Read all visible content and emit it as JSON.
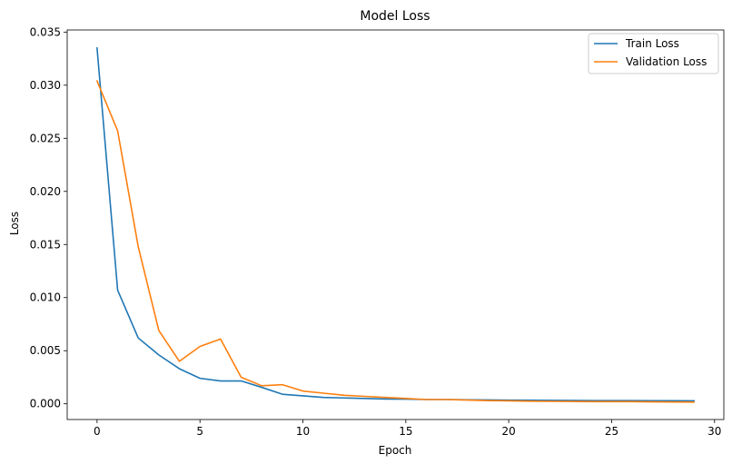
{
  "chart_data": {
    "type": "line",
    "title": "Model Loss",
    "xlabel": "Epoch",
    "ylabel": "Loss",
    "xlim": [
      -1.45,
      30.45
    ],
    "ylim": [
      -0.00148,
      0.0352
    ],
    "xticks": [
      0,
      5,
      10,
      15,
      20,
      25,
      30
    ],
    "yticks": [
      0.0,
      0.005,
      0.01,
      0.015,
      0.02,
      0.025,
      0.03,
      0.035
    ],
    "xtick_labels": [
      "0",
      "5",
      "10",
      "15",
      "20",
      "25",
      "30"
    ],
    "ytick_labels": [
      "0.000",
      "0.005",
      "0.010",
      "0.015",
      "0.020",
      "0.025",
      "0.030",
      "0.035"
    ],
    "grid": false,
    "legend_position": "top-right",
    "x": [
      0,
      1,
      2,
      3,
      4,
      5,
      6,
      7,
      8,
      9,
      10,
      11,
      12,
      13,
      14,
      15,
      16,
      17,
      18,
      19,
      20,
      21,
      22,
      23,
      24,
      25,
      26,
      27,
      28,
      29
    ],
    "series": [
      {
        "name": "Train Loss",
        "color": "#1f77b4",
        "values": [
          0.0335,
          0.0107,
          0.0062,
          0.0046,
          0.0033,
          0.0024,
          0.00215,
          0.00215,
          0.00155,
          0.0009,
          0.00075,
          0.0006,
          0.00055,
          0.0005,
          0.00045,
          0.00044,
          0.0004,
          0.0004,
          0.00038,
          0.00036,
          0.00034,
          0.00033,
          0.00032,
          0.00031,
          0.0003,
          0.0003,
          0.0003,
          0.00029,
          0.00029,
          0.00028
        ]
      },
      {
        "name": "Validation Loss",
        "color": "#ff7f0e",
        "values": [
          0.0304,
          0.0257,
          0.0148,
          0.0069,
          0.004,
          0.0054,
          0.0061,
          0.0025,
          0.0017,
          0.0018,
          0.0012,
          0.001,
          0.0008,
          0.0007,
          0.0006,
          0.0005,
          0.0004,
          0.0004,
          0.00035,
          0.0003,
          0.00028,
          0.00025,
          0.00023,
          0.00022,
          0.0002,
          0.0002,
          0.0002,
          0.00018,
          0.00017,
          0.00016
        ]
      }
    ]
  }
}
